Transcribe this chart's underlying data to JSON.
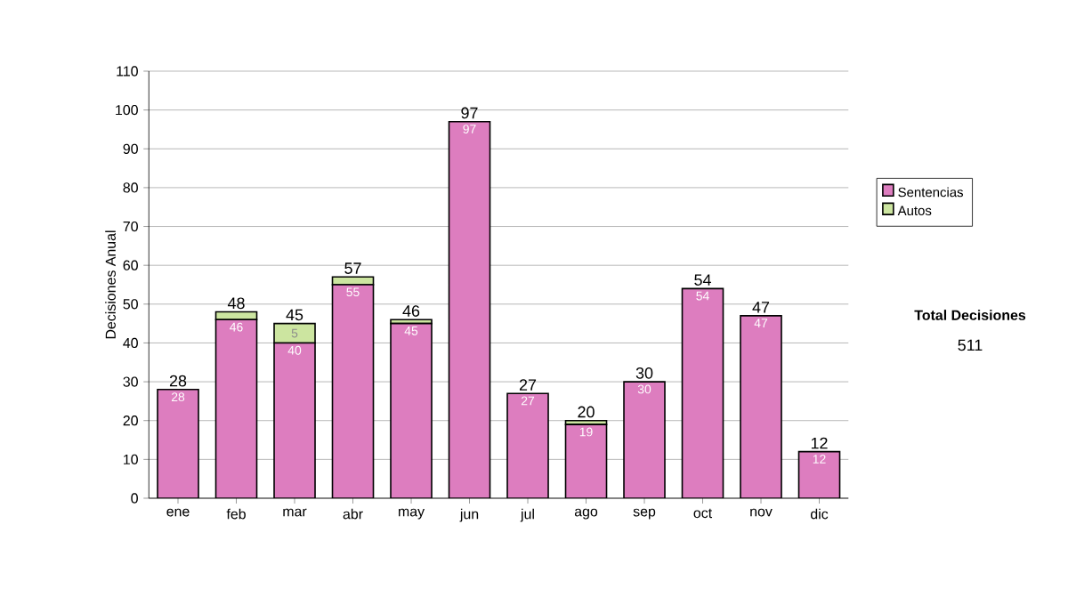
{
  "chart_data": {
    "type": "bar",
    "stacked": true,
    "ylabel": "Decisiones Anual",
    "categories": [
      "ene",
      "feb",
      "mar",
      "abr",
      "may",
      "jun",
      "jul",
      "ago",
      "sep",
      "oct",
      "nov",
      "dic"
    ],
    "series": [
      {
        "name": "Sentencias",
        "color": "#dd7dbf",
        "values": [
          28,
          46,
          40,
          55,
          45,
          97,
          27,
          19,
          30,
          54,
          47,
          12
        ],
        "value_labels": [
          "28",
          "46",
          "40",
          "55",
          "45",
          "97",
          "27",
          "19",
          "30",
          "54",
          "47",
          "12"
        ]
      },
      {
        "name": "Autos",
        "color": "#cce5a0",
        "values": [
          0,
          2,
          5,
          2,
          1,
          0,
          0,
          1,
          0,
          0,
          0,
          0
        ],
        "value_labels": [
          null,
          null,
          "5",
          null,
          null,
          null,
          null,
          null,
          null,
          null,
          null,
          null
        ]
      }
    ],
    "totals": [
      "28",
      "48",
      "45",
      "57",
      "46",
      "97",
      "27",
      "20",
      "30",
      "54",
      "47",
      "12"
    ],
    "ylim": [
      0,
      110
    ],
    "yticks": [
      0,
      10,
      20,
      30,
      40,
      50,
      60,
      70,
      80,
      90,
      100,
      110
    ],
    "grid": "y",
    "legend": "right",
    "annotations": [
      "Total Decisiones",
      "511"
    ]
  }
}
